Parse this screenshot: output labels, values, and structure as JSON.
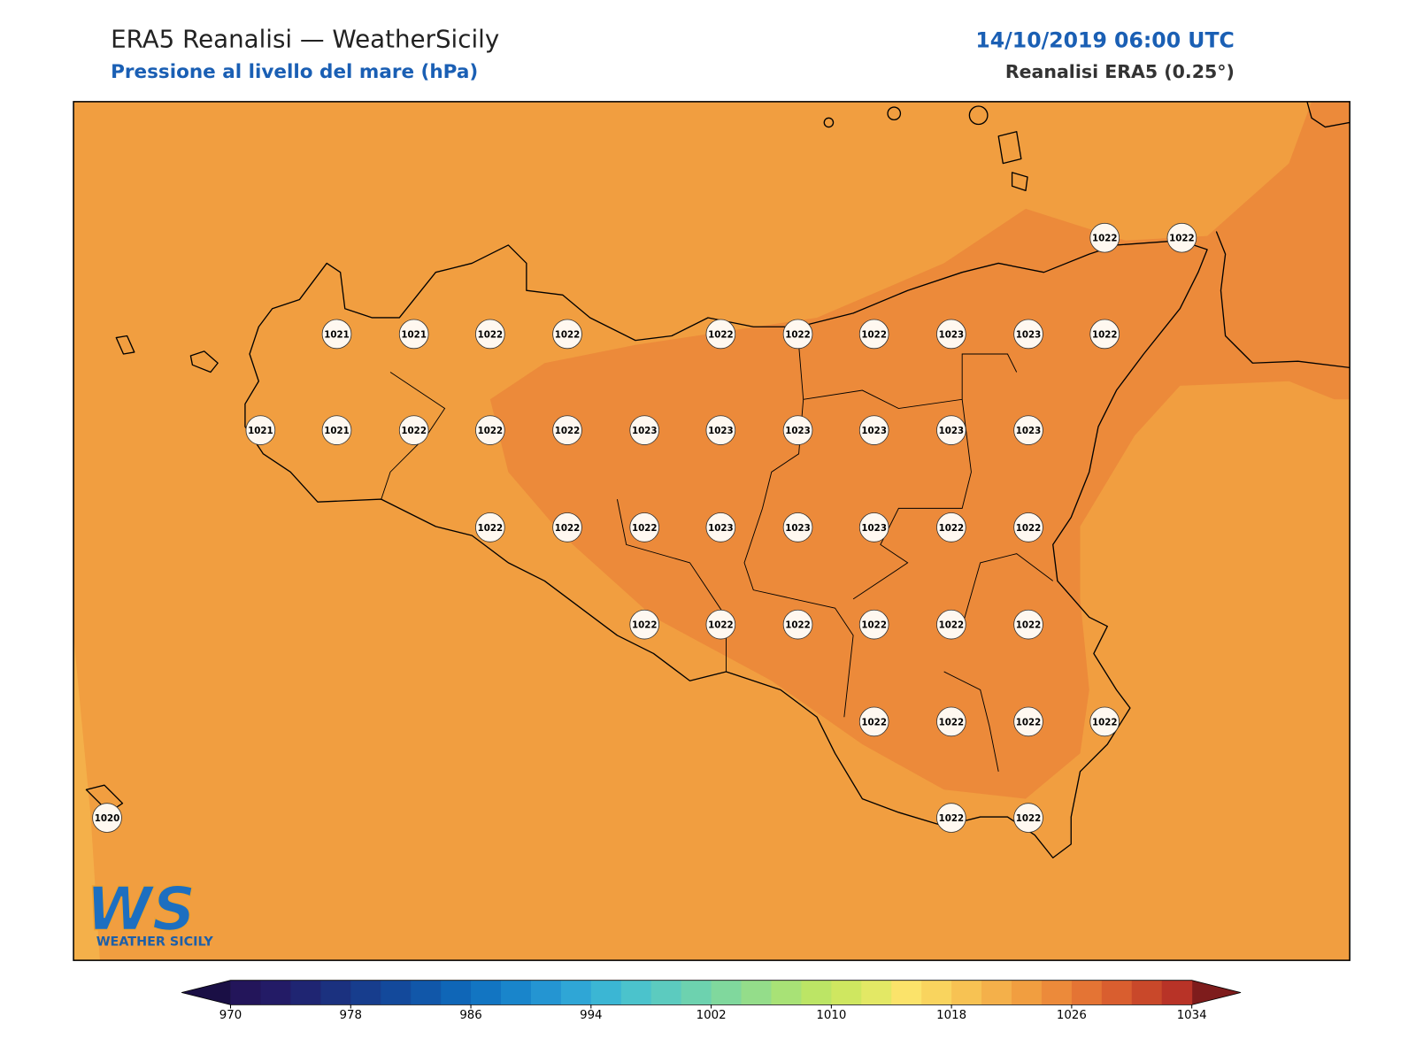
{
  "header": {
    "title": "ERA5 Reanalisi — WeatherSicily",
    "subtitle": "Pressione al livello del mare (hPa)",
    "datetime": "14/10/2019 06:00 UTC",
    "source": "Reanalisi ERA5 (0.25°)"
  },
  "map": {
    "stations": [
      1022,
      1022,
      1021,
      1021,
      1022,
      1022,
      1022,
      1022,
      1022,
      1023,
      1023,
      1022,
      1021,
      1021,
      1022,
      1022,
      1022,
      1023,
      1023,
      1023,
      1023,
      1023,
      1023,
      1022,
      1022,
      1022,
      1023,
      1023,
      1023,
      1022,
      1022,
      1022,
      1022,
      1022,
      1022,
      1022,
      1022,
      1022,
      1022,
      1022,
      1022,
      1020,
      1022,
      1022
    ]
  },
  "colorbar": {
    "lim": [
      970,
      1034
    ],
    "ticks": [
      970,
      978,
      986,
      994,
      1002,
      1010,
      1018,
      1026,
      1034
    ],
    "colors": [
      "#23155a",
      "#231b66",
      "#1f2572",
      "#1b317f",
      "#173d8d",
      "#13499b",
      "#1157a9",
      "#0f66b7",
      "#1275c2",
      "#1985cb",
      "#2495d2",
      "#2fa6d6",
      "#3bb6d4",
      "#4bc3cc",
      "#5ccbbf",
      "#6dd2af",
      "#80d89d",
      "#94dd8a",
      "#a8e276",
      "#bce565",
      "#cfe760",
      "#e3e865",
      "#fbe36a",
      "#f9d45e",
      "#f7c253",
      "#f4b04a",
      "#f19e40",
      "#ec8a3a",
      "#e47434",
      "#d95e2f",
      "#c9482a",
      "#b83327"
    ],
    "under_color": "#1a0f45",
    "over_color": "#7e1c1c"
  },
  "logo": {
    "mark": "WS",
    "text": "WEATHER SICILY"
  }
}
